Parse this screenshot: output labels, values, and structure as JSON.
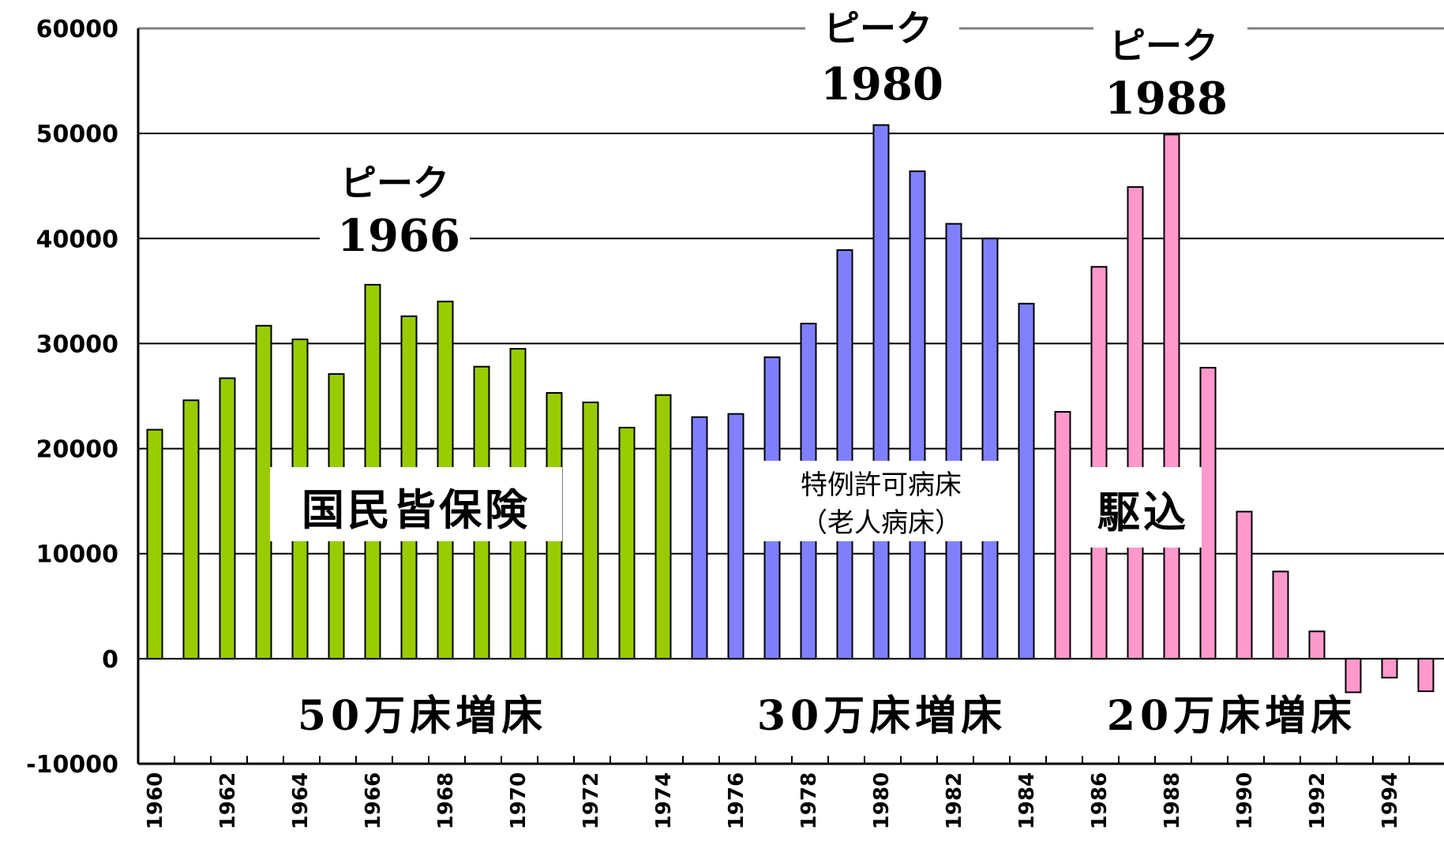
{
  "chart_data": {
    "type": "bar",
    "title": "",
    "xlabel": "",
    "ylabel": "",
    "ylim": [
      -10000,
      60000
    ],
    "yticks": [
      60000,
      50000,
      40000,
      30000,
      20000,
      10000,
      0,
      -10000
    ],
    "grid": true,
    "categories": [
      "1960",
      "1961",
      "1962",
      "1963",
      "1964",
      "1965",
      "1966",
      "1967",
      "1968",
      "1969",
      "1970",
      "1971",
      "1972",
      "1973",
      "1974",
      "1975",
      "1976",
      "1977",
      "1978",
      "1979",
      "1980",
      "1981",
      "1982",
      "1983",
      "1984",
      "1985",
      "1986",
      "1987",
      "1988",
      "1989",
      "1990",
      "1991",
      "1992",
      "1993",
      "1994",
      "1995"
    ],
    "x_tick_labels": [
      "1960",
      "1962",
      "1964",
      "1966",
      "1968",
      "1970",
      "1972",
      "1974",
      "1976",
      "1978",
      "1980",
      "1982",
      "1984",
      "1986",
      "1988",
      "1990",
      "1992",
      "1994"
    ],
    "series": [
      {
        "color": "#99cc00",
        "values": [
          21800,
          24600,
          26700,
          31700,
          30400,
          27100,
          35600,
          32600,
          34000,
          27800,
          29500,
          25300,
          24400,
          22000,
          25100,
          null,
          null,
          null,
          null,
          null,
          null,
          null,
          null,
          null,
          null,
          null,
          null,
          null,
          null,
          null,
          null,
          null,
          null,
          null,
          null,
          null
        ]
      },
      {
        "color": "#8080ff",
        "values": [
          null,
          null,
          null,
          null,
          null,
          null,
          null,
          null,
          null,
          null,
          null,
          null,
          null,
          null,
          null,
          23000,
          23300,
          28700,
          31900,
          38900,
          50800,
          46400,
          41400,
          40000,
          33800,
          null,
          null,
          null,
          null,
          null,
          null,
          null,
          null,
          null,
          null,
          null
        ]
      },
      {
        "color": "#ff99cc",
        "values": [
          null,
          null,
          null,
          null,
          null,
          null,
          null,
          null,
          null,
          null,
          null,
          null,
          null,
          null,
          null,
          null,
          null,
          null,
          null,
          null,
          null,
          null,
          null,
          null,
          null,
          23500,
          37300,
          44900,
          49900,
          27700,
          14000,
          8300,
          2600,
          -3200,
          -1800,
          -3100
        ]
      }
    ],
    "peaks": [
      {
        "word": "ピーク",
        "year": "1966"
      },
      {
        "word": "ピーク",
        "year": "1980"
      },
      {
        "word": "ピーク",
        "year": "1988"
      }
    ],
    "boxes": {
      "kaihoken": "国民皆保険",
      "tokurei_line1": "特例許可病床",
      "tokurei_line2": "（老人病床）",
      "kakekomi": "駆込"
    },
    "period_labels": [
      "50万床増床",
      "30万床増床",
      "20万床増床"
    ]
  }
}
